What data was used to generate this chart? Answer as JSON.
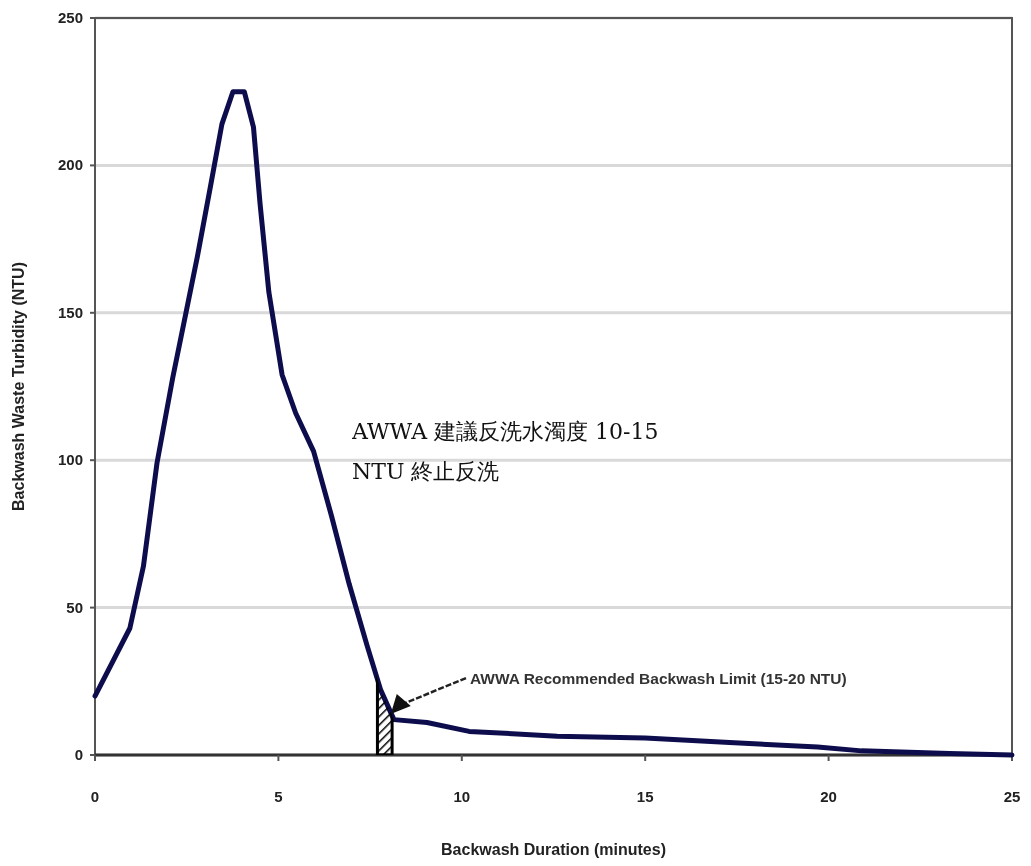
{
  "chart_data": {
    "type": "line",
    "xlabel": "Backwash Duration (minutes)",
    "ylabel": "Backwash Waste Turbidity (NTU)",
    "xlim": [
      0,
      25
    ],
    "ylim": [
      0,
      250
    ],
    "xticks": [
      0,
      5,
      10,
      15,
      20,
      25
    ],
    "yticks": [
      0,
      50,
      100,
      150,
      200,
      250
    ],
    "grid": "y",
    "marker": "none",
    "line_style": "solid",
    "series": [
      {
        "color": "#0d0d4d",
        "x": [
          0,
          0.95,
          1.32,
          1.69,
          2.12,
          2.48,
          2.79,
          3.15,
          3.46,
          3.76,
          4.07,
          4.32,
          4.5,
          4.74,
          5.1,
          5.47,
          5.96,
          6.45,
          6.93,
          7.42,
          7.79,
          8.15,
          9.05,
          10.2,
          12.6,
          15,
          17.3,
          19.7,
          20.9,
          23.3,
          25
        ],
        "values": [
          20,
          43,
          64,
          99,
          128,
          150,
          169,
          193,
          214,
          225,
          225,
          213,
          187,
          157,
          129,
          116,
          103,
          81,
          58,
          37,
          22,
          12,
          11,
          8,
          6.4,
          5.8,
          4.2,
          2.7,
          1.4,
          0.5,
          0
        ]
      }
    ],
    "bands": [
      {
        "axis": "x",
        "from": 7.7,
        "to": 8.1,
        "color": "#000000"
      }
    ],
    "annotations": [
      "AWWA Recommended Backwash Limit (15-20 NTU)",
      "AWWA 建議反洗水濁度 10-15 NTU 終止反洗"
    ]
  }
}
